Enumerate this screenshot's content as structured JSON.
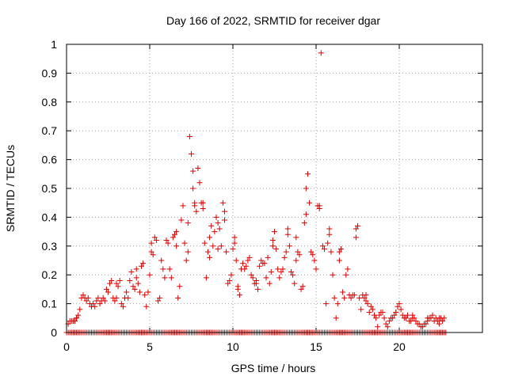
{
  "chart_data": {
    "type": "scatter",
    "title": "Day 166 of 2022, SRMTID for receiver dgar",
    "xlabel": "GPS time / hours",
    "ylabel": "SRMTID / TECUs",
    "xlim": [
      0,
      25
    ],
    "ylim": [
      0,
      1
    ],
    "xticks": [
      0,
      5,
      10,
      15,
      20
    ],
    "xtick_labels": [
      "0",
      "5",
      "10",
      "15",
      "20"
    ],
    "yticks": [
      0,
      0.1,
      0.2,
      0.3,
      0.4,
      0.5,
      0.6,
      0.7,
      0.8,
      0.9,
      1
    ],
    "ytick_labels": [
      "0",
      "0.1",
      "0.2",
      "0.3",
      "0.4",
      "0.5",
      "0.6",
      "0.7",
      "0.8",
      "0.9",
      "1"
    ],
    "grid": true,
    "marker": "+",
    "series": [
      {
        "name": "SRMTID",
        "color": "#dd0000",
        "points": [
          [
            0.1,
            0.03
          ],
          [
            0.2,
            0.04
          ],
          [
            0.3,
            0.04
          ],
          [
            0.4,
            0.04
          ],
          [
            0.5,
            0.04
          ],
          [
            0.6,
            0.05
          ],
          [
            0.7,
            0.06
          ],
          [
            0.8,
            0.08
          ],
          [
            0.9,
            0.12
          ],
          [
            1.0,
            0.13
          ],
          [
            1.1,
            0.12
          ],
          [
            1.2,
            0.11
          ],
          [
            1.3,
            0.12
          ],
          [
            1.4,
            0.1
          ],
          [
            1.5,
            0.09
          ],
          [
            1.6,
            0.1
          ],
          [
            1.7,
            0.09
          ],
          [
            1.8,
            0.11
          ],
          [
            1.9,
            0.12
          ],
          [
            2.0,
            0.1
          ],
          [
            2.1,
            0.11
          ],
          [
            2.2,
            0.12
          ],
          [
            2.3,
            0.11
          ],
          [
            2.4,
            0.15
          ],
          [
            2.5,
            0.14
          ],
          [
            2.6,
            0.17
          ],
          [
            2.7,
            0.18
          ],
          [
            2.8,
            0.12
          ],
          [
            2.9,
            0.11
          ],
          [
            3.0,
            0.12
          ],
          [
            3.1,
            0.16
          ],
          [
            3.2,
            0.18
          ],
          [
            3.3,
            0.1
          ],
          [
            3.4,
            0.09
          ],
          [
            3.5,
            0.12
          ],
          [
            3.6,
            0.14
          ],
          [
            3.7,
            0.12
          ],
          [
            3.8,
            0.18
          ],
          [
            3.9,
            0.21
          ],
          [
            4.0,
            0.16
          ],
          [
            4.1,
            0.15
          ],
          [
            4.2,
            0.19
          ],
          [
            4.3,
            0.17
          ],
          [
            4.4,
            0.14
          ],
          [
            4.5,
            0.23
          ],
          [
            4.6,
            0.24
          ],
          [
            4.7,
            0.13
          ],
          [
            4.8,
            0.09
          ],
          [
            4.9,
            0.14
          ],
          [
            5.0,
            0.2
          ],
          [
            5.1,
            0.28
          ],
          [
            5.2,
            0.27
          ],
          [
            5.3,
            0.33
          ],
          [
            5.4,
            0.32
          ],
          [
            5.5,
            0.11
          ],
          [
            5.6,
            0.12
          ],
          [
            5.7,
            0.25
          ],
          [
            5.8,
            0.22
          ],
          [
            5.9,
            0.19
          ],
          [
            6.0,
            0.32
          ],
          [
            6.1,
            0.31
          ],
          [
            6.2,
            0.22
          ],
          [
            6.3,
            0.19
          ],
          [
            6.4,
            0.33
          ],
          [
            6.5,
            0.34
          ],
          [
            6.6,
            0.3
          ],
          [
            6.7,
            0.12
          ],
          [
            6.8,
            0.16
          ],
          [
            6.9,
            0.39
          ],
          [
            7.0,
            0.44
          ],
          [
            7.1,
            0.31
          ],
          [
            7.2,
            0.25
          ],
          [
            7.3,
            0.28
          ],
          [
            7.4,
            0.68
          ],
          [
            7.5,
            0.62
          ],
          [
            7.6,
            0.56
          ],
          [
            7.7,
            0.45
          ],
          [
            7.8,
            0.42
          ],
          [
            7.9,
            0.57
          ],
          [
            8.0,
            0.52
          ],
          [
            8.1,
            0.45
          ],
          [
            8.2,
            0.43
          ],
          [
            8.3,
            0.31
          ],
          [
            8.4,
            0.19
          ],
          [
            8.5,
            0.28
          ],
          [
            8.6,
            0.33
          ],
          [
            8.7,
            0.37
          ],
          [
            8.8,
            0.3
          ],
          [
            8.9,
            0.35
          ],
          [
            9.0,
            0.4
          ],
          [
            9.1,
            0.29
          ],
          [
            9.2,
            0.36
          ],
          [
            9.3,
            0.3
          ],
          [
            9.4,
            0.45
          ],
          [
            9.5,
            0.42
          ],
          [
            9.6,
            0.28
          ],
          [
            9.7,
            0.17
          ],
          [
            9.8,
            0.18
          ],
          [
            9.9,
            0.2
          ],
          [
            10.0,
            0.29
          ],
          [
            10.1,
            0.33
          ],
          [
            10.2,
            0.25
          ],
          [
            10.3,
            0.15
          ],
          [
            10.4,
            0.13
          ],
          [
            10.5,
            0.22
          ],
          [
            10.6,
            0.24
          ],
          [
            10.7,
            0.22
          ],
          [
            10.8,
            0.23
          ],
          [
            10.9,
            0.25
          ],
          [
            11.0,
            0.26
          ],
          [
            11.1,
            0.2
          ],
          [
            11.2,
            0.19
          ],
          [
            11.3,
            0.17
          ],
          [
            11.4,
            0.17
          ],
          [
            11.5,
            0.15
          ],
          [
            11.6,
            0.23
          ],
          [
            11.7,
            0.25
          ],
          [
            11.8,
            0.24
          ],
          [
            11.9,
            0.24
          ],
          [
            12.0,
            0.19
          ],
          [
            12.1,
            0.26
          ],
          [
            12.2,
            0.17
          ],
          [
            12.3,
            0.21
          ],
          [
            12.4,
            0.32
          ],
          [
            12.5,
            0.35
          ],
          [
            12.6,
            0.29
          ],
          [
            12.7,
            0.22
          ],
          [
            12.8,
            0.19
          ],
          [
            12.9,
            0.21
          ],
          [
            13.0,
            0.22
          ],
          [
            13.1,
            0.26
          ],
          [
            13.2,
            0.28
          ],
          [
            13.3,
            0.34
          ],
          [
            13.4,
            0.3
          ],
          [
            13.5,
            0.21
          ],
          [
            13.6,
            0.2
          ],
          [
            13.7,
            0.17
          ],
          [
            13.8,
            0.25
          ],
          [
            13.9,
            0.28
          ],
          [
            14.0,
            0.27
          ],
          [
            14.1,
            0.15
          ],
          [
            14.2,
            0.16
          ],
          [
            14.3,
            0.38
          ],
          [
            14.4,
            0.5
          ],
          [
            14.5,
            0.55
          ],
          [
            14.6,
            0.45
          ],
          [
            14.7,
            0.28
          ],
          [
            14.8,
            0.27
          ],
          [
            14.9,
            0.25
          ],
          [
            15.0,
            0.22
          ],
          [
            15.1,
            0.44
          ],
          [
            15.2,
            0.43
          ],
          [
            15.3,
            0.97
          ],
          [
            15.4,
            0.3
          ],
          [
            15.5,
            0.29
          ],
          [
            15.6,
            0.1
          ],
          [
            15.7,
            0.31
          ],
          [
            15.8,
            0.36
          ],
          [
            15.9,
            0.28
          ],
          [
            16.0,
            0.2
          ],
          [
            16.1,
            0.12
          ],
          [
            16.2,
            0.05
          ],
          [
            16.3,
            0.1
          ],
          [
            16.4,
            0.28
          ],
          [
            16.5,
            0.29
          ],
          [
            16.6,
            0.14
          ],
          [
            16.7,
            0.12
          ],
          [
            16.8,
            0.2
          ],
          [
            16.9,
            0.22
          ],
          [
            17.0,
            0.13
          ],
          [
            17.1,
            0.12
          ],
          [
            17.2,
            0.13
          ],
          [
            17.3,
            0.13
          ],
          [
            17.4,
            0.33
          ],
          [
            17.5,
            0.37
          ],
          [
            17.6,
            0.12
          ],
          [
            17.7,
            0.08
          ],
          [
            17.8,
            0.13
          ],
          [
            17.9,
            0.12
          ],
          [
            18.0,
            0.11
          ],
          [
            18.1,
            0.1
          ],
          [
            18.2,
            0.07
          ],
          [
            18.3,
            0.09
          ],
          [
            18.4,
            0.08
          ],
          [
            18.5,
            0.06
          ],
          [
            18.6,
            0.05
          ],
          [
            18.7,
            0.02
          ],
          [
            18.8,
            0.06
          ],
          [
            18.9,
            0.07
          ],
          [
            19.0,
            0.07
          ],
          [
            19.1,
            0.05
          ],
          [
            19.2,
            0.03
          ],
          [
            19.3,
            0.02
          ],
          [
            19.4,
            0.04
          ],
          [
            19.5,
            0.05
          ],
          [
            19.6,
            0.05
          ],
          [
            19.7,
            0.06
          ],
          [
            19.8,
            0.07
          ],
          [
            19.9,
            0.09
          ],
          [
            20.0,
            0.1
          ],
          [
            20.1,
            0.08
          ],
          [
            20.2,
            0.06
          ],
          [
            20.3,
            0.05
          ],
          [
            20.4,
            0.05
          ],
          [
            20.5,
            0.06
          ],
          [
            20.6,
            0.04
          ],
          [
            20.7,
            0.04
          ],
          [
            20.8,
            0.06
          ],
          [
            20.9,
            0.05
          ],
          [
            21.0,
            0.04
          ],
          [
            21.1,
            0.03
          ],
          [
            21.2,
            0.03
          ],
          [
            21.3,
            0.02
          ],
          [
            21.4,
            0.02
          ],
          [
            21.5,
            0.03
          ],
          [
            21.6,
            0.03
          ],
          [
            21.7,
            0.04
          ],
          [
            21.8,
            0.05
          ],
          [
            21.9,
            0.05
          ],
          [
            22.0,
            0.06
          ],
          [
            22.1,
            0.04
          ],
          [
            22.2,
            0.05
          ],
          [
            22.3,
            0.04
          ],
          [
            22.4,
            0.05
          ],
          [
            22.5,
            0.05
          ],
          [
            22.6,
            0.04
          ],
          [
            22.7,
            0.05
          ],
          [
            0.6,
            0.05
          ],
          [
            3.0,
            0.17
          ],
          [
            4.2,
            0.22
          ],
          [
            5.1,
            0.31
          ],
          [
            6.6,
            0.35
          ],
          [
            7.3,
            0.38
          ],
          [
            7.6,
            0.5
          ],
          [
            7.7,
            0.44
          ],
          [
            8.2,
            0.45
          ],
          [
            8.6,
            0.26
          ],
          [
            9.1,
            0.38
          ],
          [
            9.5,
            0.39
          ],
          [
            10.1,
            0.31
          ],
          [
            10.3,
            0.16
          ],
          [
            11.4,
            0.18
          ],
          [
            12.4,
            0.3
          ],
          [
            13.3,
            0.36
          ],
          [
            13.8,
            0.33
          ],
          [
            14.4,
            0.41
          ],
          [
            15.2,
            0.44
          ],
          [
            15.8,
            0.34
          ],
          [
            16.4,
            0.25
          ],
          [
            17.4,
            0.36
          ],
          [
            18.0,
            0.13
          ],
          [
            19.8,
            0.07
          ],
          [
            20.8,
            0.05
          ],
          [
            21.7,
            0.05
          ],
          [
            22.4,
            0.03
          ]
        ],
        "zero_band": {
          "x_start": 0.0,
          "x_end": 22.8,
          "y": 0.0
        }
      }
    ]
  }
}
